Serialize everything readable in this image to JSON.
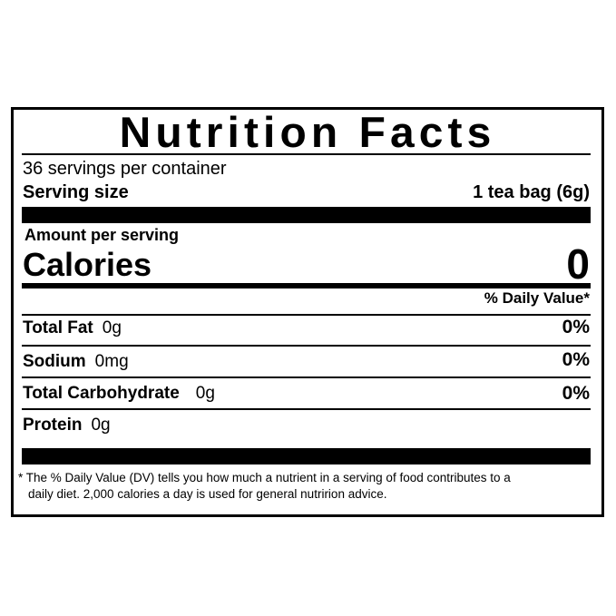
{
  "title": "Nutrition Facts",
  "servings_per_container": "36 servings per container",
  "serving_size": {
    "label": "Serving size",
    "value": "1 tea bag (6g)"
  },
  "amount_per_serving": "Amount per serving",
  "calories": {
    "label": "Calories",
    "value": "0"
  },
  "daily_value_header": "% Daily Value*",
  "nutrients": [
    {
      "name": "Total Fat",
      "amount": "0g",
      "dv": "0%"
    },
    {
      "name": "Sodium",
      "amount": "0mg",
      "dv": "0%"
    },
    {
      "name": "Total Carbohydrate",
      "amount": "0g",
      "dv": "0%"
    },
    {
      "name": "Protein",
      "amount": "0g",
      "dv": ""
    }
  ],
  "footnote": {
    "line1": "* The % Daily Value (DV) tells you how much a nutrient in a serving of food contributes to a",
    "line2": "daily diet. 2,000 calories a day is used for general nutririon advice."
  }
}
